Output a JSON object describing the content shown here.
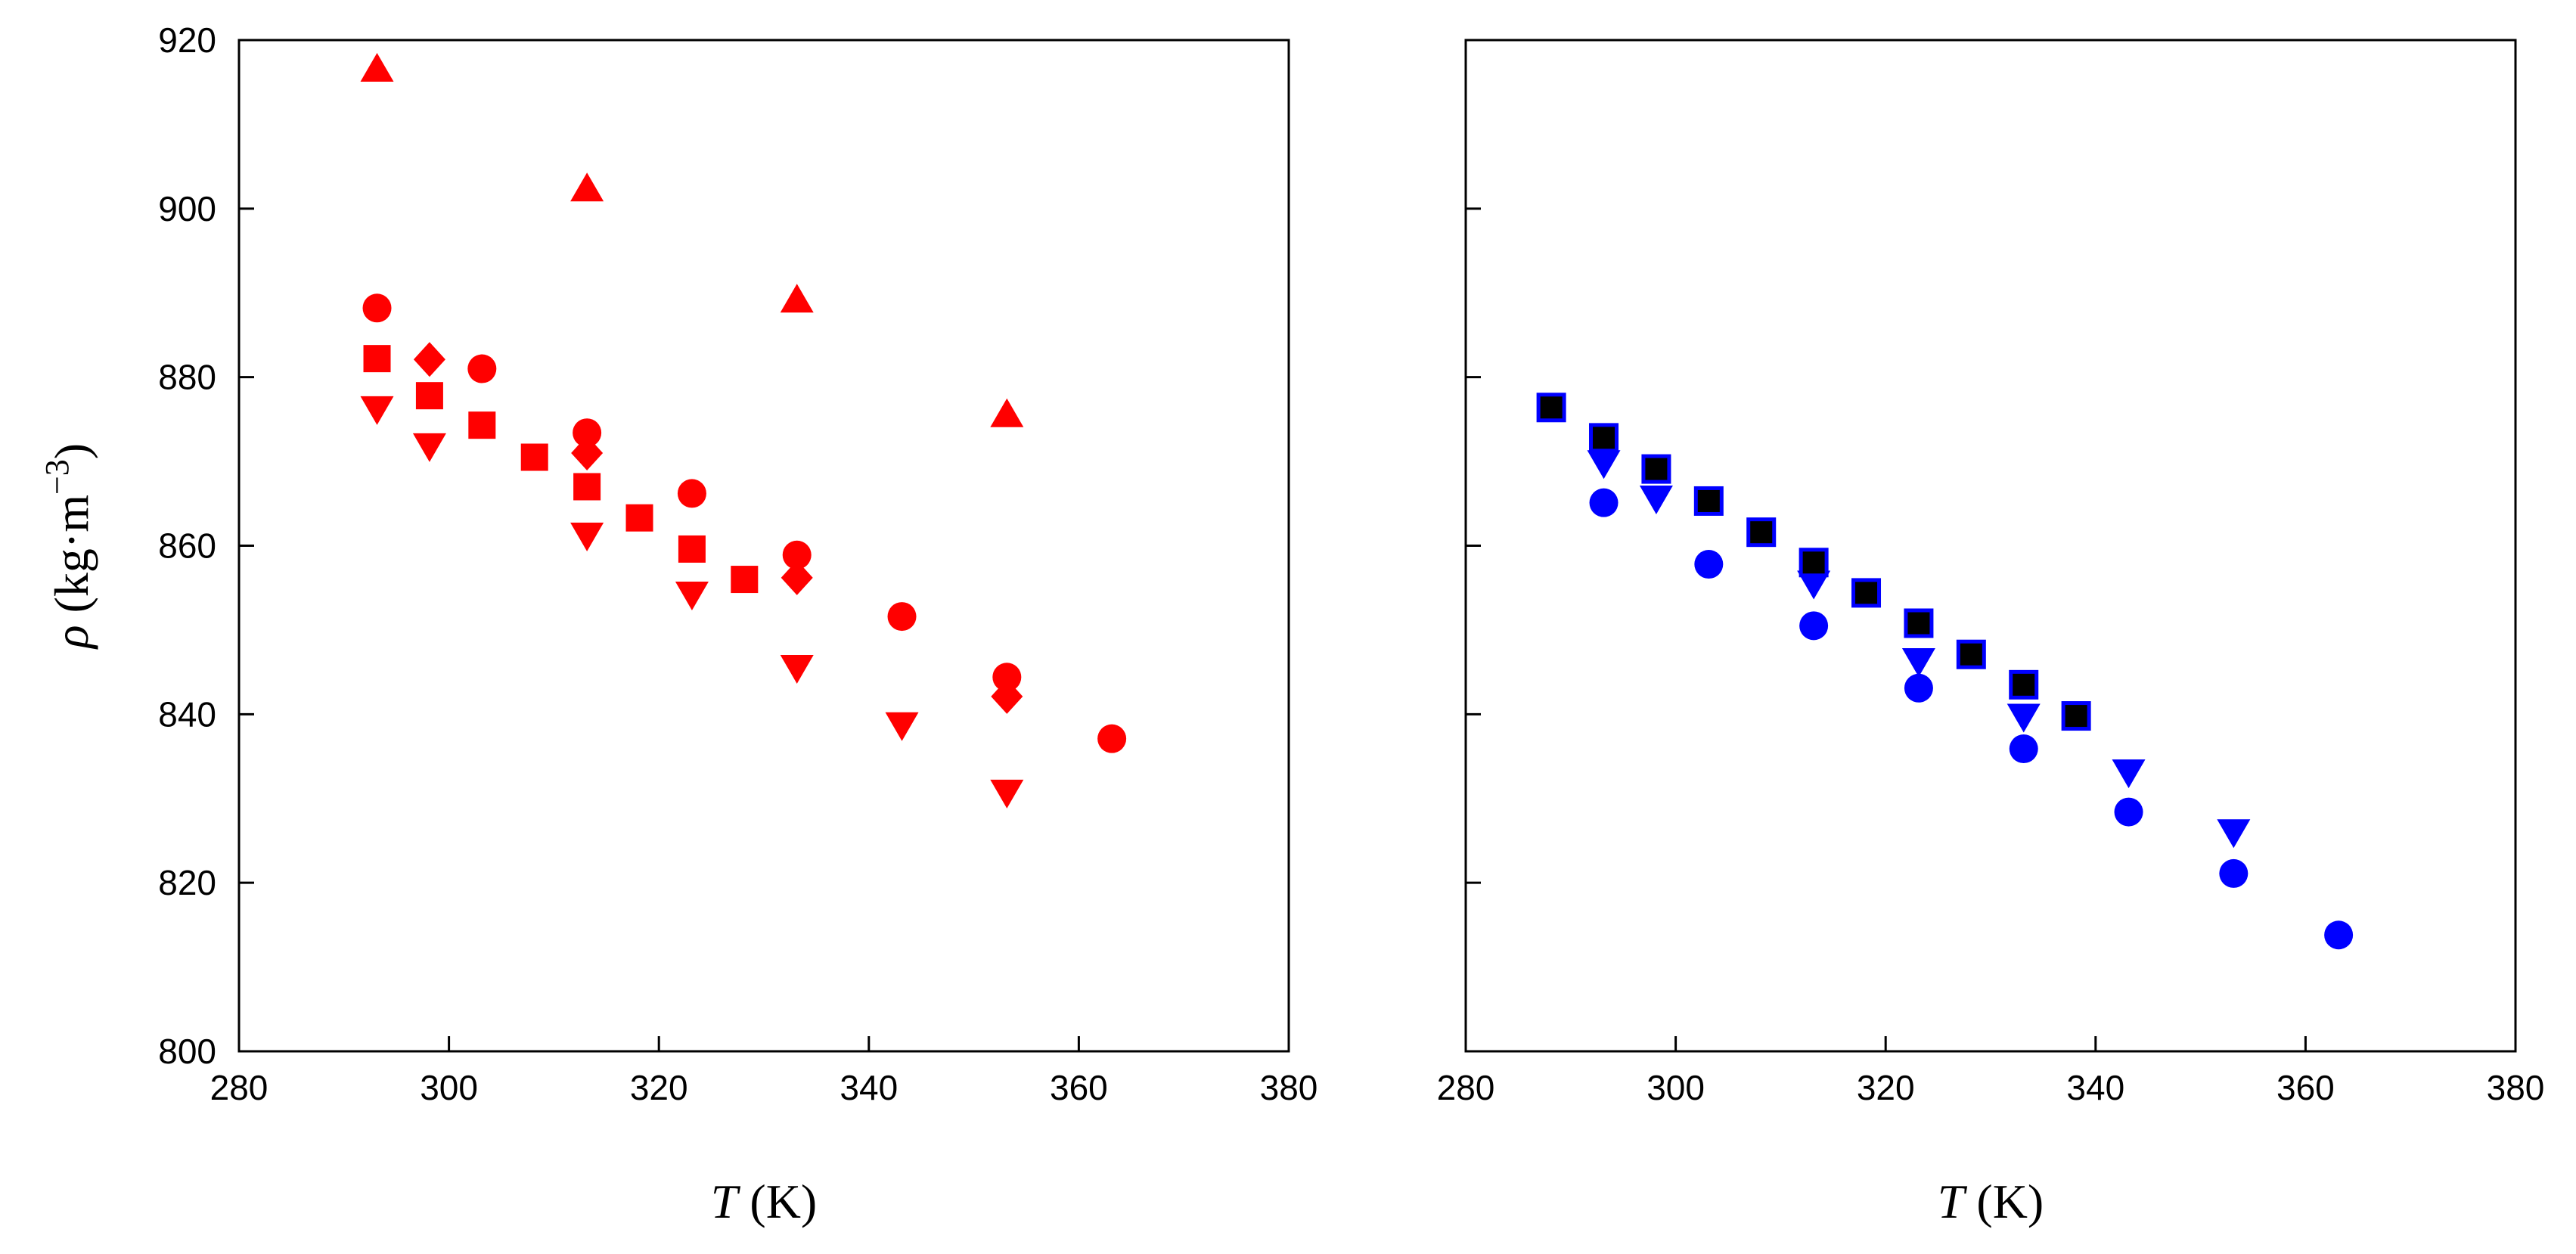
{
  "chart_data": [
    {
      "type": "scatter",
      "title": "",
      "xlabel": {
        "symbol": "T",
        "unit": "(K)"
      },
      "ylabel": {
        "symbol": "ρ",
        "unit": "(kg·m",
        "exponent": "−3",
        "close": ")"
      },
      "xlim": [
        280,
        380
      ],
      "ylim": [
        800,
        920
      ],
      "xticks": [
        "280",
        "300",
        "320",
        "340",
        "360",
        "380"
      ],
      "yticks": [
        "800",
        "820",
        "840",
        "860",
        "880",
        "900",
        "920"
      ],
      "show_ytick_labels": true,
      "series": [
        {
          "name": "triangle-up",
          "marker": "triangle-up",
          "color": "#ff0000",
          "points": [
            [
              293.15,
              916.5
            ],
            [
              313.15,
              902.3
            ],
            [
              333.15,
              889.1
            ],
            [
              353.15,
              875.5
            ]
          ]
        },
        {
          "name": "circle",
          "marker": "circle",
          "color": "#ff0000",
          "points": [
            [
              293.15,
              888.2
            ],
            [
              303.15,
              881.0
            ],
            [
              313.15,
              873.4
            ],
            [
              323.15,
              866.2
            ],
            [
              333.15,
              858.9
            ],
            [
              343.15,
              851.6
            ],
            [
              353.15,
              844.4
            ],
            [
              363.15,
              837.1
            ]
          ]
        },
        {
          "name": "diamond",
          "marker": "diamond",
          "color": "#ff0000",
          "points": [
            [
              298.15,
              882.1
            ],
            [
              313.15,
              871.0
            ],
            [
              333.15,
              856.2
            ],
            [
              353.15,
              842.1
            ]
          ]
        },
        {
          "name": "square",
          "marker": "square",
          "color": "#ff0000",
          "points": [
            [
              293.15,
              882.2
            ],
            [
              298.15,
              877.8
            ],
            [
              303.15,
              874.3
            ],
            [
              308.15,
              870.5
            ],
            [
              313.15,
              867.0
            ],
            [
              318.15,
              863.3
            ],
            [
              323.15,
              859.6
            ],
            [
              328.15,
              856.0
            ]
          ]
        },
        {
          "name": "triangle-down",
          "marker": "triangle-down",
          "color": "#ff0000",
          "points": [
            [
              293.15,
              876.3
            ],
            [
              298.15,
              871.9
            ],
            [
              313.15,
              861.3
            ],
            [
              323.15,
              854.3
            ],
            [
              333.15,
              845.6
            ],
            [
              343.15,
              838.8
            ],
            [
              353.15,
              830.8
            ]
          ]
        }
      ]
    },
    {
      "type": "scatter",
      "title": "",
      "xlabel": {
        "symbol": "T",
        "unit": "(K)"
      },
      "ylabel": null,
      "xlim": [
        280,
        380
      ],
      "ylim": [
        800,
        920
      ],
      "xticks": [
        "280",
        "300",
        "320",
        "340",
        "360",
        "380"
      ],
      "yticks": [
        "800",
        "820",
        "840",
        "860",
        "880",
        "900",
        "920"
      ],
      "show_ytick_labels": false,
      "series": [
        {
          "name": "circle",
          "marker": "circle",
          "color": "#0000ff",
          "points": [
            [
              293.15,
              865.1
            ],
            [
              303.15,
              857.8
            ],
            [
              313.15,
              850.5
            ],
            [
              323.15,
              843.1
            ],
            [
              333.15,
              835.9
            ],
            [
              343.15,
              828.4
            ],
            [
              353.15,
              821.1
            ],
            [
              363.15,
              813.8
            ]
          ]
        },
        {
          "name": "triangle-down",
          "marker": "triangle-down",
          "color": "#0000ff",
          "points": [
            [
              293.15,
              869.9
            ],
            [
              298.15,
              865.7
            ],
            [
              313.15,
              855.6
            ],
            [
              323.15,
              846.4
            ],
            [
              333.15,
              839.8
            ],
            [
              343.15,
              833.2
            ],
            [
              353.15,
              826.1
            ]
          ]
        },
        {
          "name": "square",
          "marker": "square-outlined",
          "color": "#000000",
          "edgecolor": "#0000ff",
          "points": [
            [
              288.15,
              876.4
            ],
            [
              293.15,
              872.8
            ],
            [
              298.15,
              869.1
            ],
            [
              303.15,
              865.3
            ],
            [
              308.15,
              861.6
            ],
            [
              313.15,
              858.0
            ],
            [
              318.15,
              854.4
            ],
            [
              323.15,
              850.8
            ],
            [
              328.15,
              847.1
            ],
            [
              333.15,
              843.5
            ],
            [
              338.15,
              839.8
            ]
          ]
        }
      ]
    }
  ]
}
